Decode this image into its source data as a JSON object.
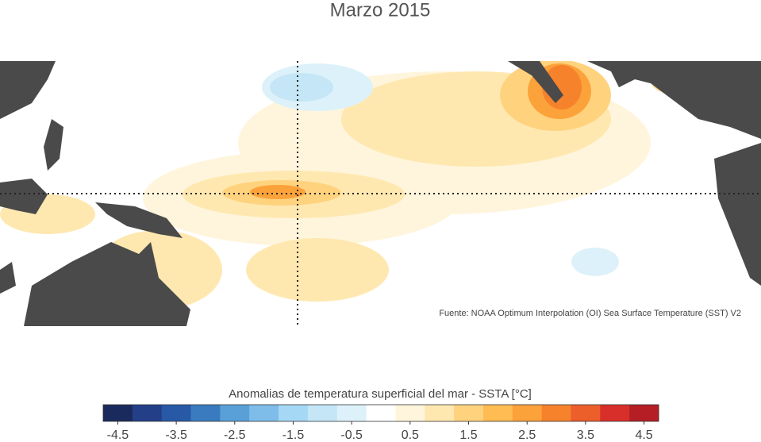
{
  "title": "Marzo 2015",
  "source": "Fuente: NOAA Optimum Interpolation (OI) Sea Surface Temperature (SST) V2",
  "colorbar": {
    "label": "Anomalias de temperatura superficial del mar - SSTA  [°C]",
    "lim": [
      -4.75,
      4.75
    ],
    "colors": [
      "#1b2a5c",
      "#223f88",
      "#2859a6",
      "#3a7bbf",
      "#5aa0d8",
      "#7ebde9",
      "#a5d8f4",
      "#c4e6f7",
      "#ddf1fa",
      "#ffffff",
      "#fff5dc",
      "#ffe8b0",
      "#ffd27e",
      "#ffbc52",
      "#fca23a",
      "#f6822c",
      "#ec5e2a",
      "#d82f2a",
      "#b51e24"
    ],
    "ticks": [
      -4.5,
      -3.5,
      -2.5,
      -1.5,
      -0.5,
      0.5,
      1.5,
      2.5,
      3.5,
      4.5
    ]
  }
}
